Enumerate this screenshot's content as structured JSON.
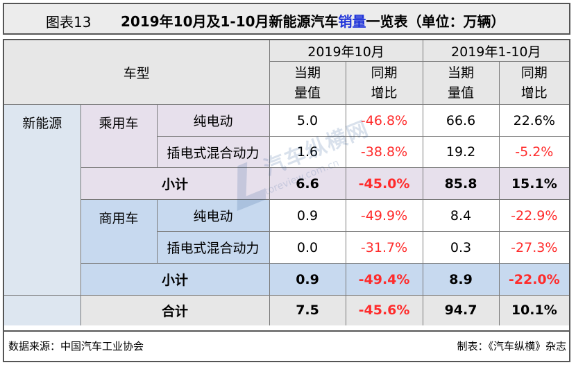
{
  "title": {
    "figure_no": "图表13",
    "text_before": "2019年10月及1-10月新能源汽车",
    "highlight": "销量",
    "text_after": "一览表（单位：万辆）"
  },
  "header": {
    "vehicle_type": "车型",
    "period_oct": "2019年10月",
    "period_ytd": "2019年1-10月",
    "current_l1": "当期",
    "current_l2": "量值",
    "yoy_l1": "同期",
    "yoy_l2": "增比"
  },
  "labels": {
    "nev": "新能源",
    "passenger": "乘用车",
    "commercial": "商用车",
    "bev": "纯电动",
    "phev": "插电式混合动力",
    "subtotal": "小计",
    "total": "合计"
  },
  "rows": {
    "passenger_bev": [
      "5.0",
      "-46.8%",
      "66.6",
      "22.6%"
    ],
    "passenger_phev": [
      "1.6",
      "-38.8%",
      "19.2",
      "-5.2%"
    ],
    "passenger_subtotal": [
      "6.6",
      "-45.0%",
      "85.8",
      "15.1%"
    ],
    "commercial_bev": [
      "0.9",
      "-49.9%",
      "8.4",
      "-22.9%"
    ],
    "commercial_phev": [
      "0.0",
      "-31.7%",
      "0.3",
      "-27.3%"
    ],
    "commercial_subtotal": [
      "0.9",
      "-49.4%",
      "8.9",
      "-22.0%"
    ],
    "total": [
      "7.5",
      "-45.6%",
      "94.7",
      "10.1%"
    ]
  },
  "footer": {
    "source": "数据来源：中国汽车工业协会",
    "maker": "制表：《汽车纵横》杂志"
  },
  "watermark": {
    "text": "汽车纵横网",
    "url": "autoreview.com.cn"
  },
  "colors": {
    "header_bg": "#e7e7e7",
    "nev_bg": "#dde6f0",
    "passenger_bg": "#e7e0ec",
    "commercial_bg": "#c7d9ef",
    "negative": "#ff2b2b",
    "title_highlight": "#1f33d9"
  }
}
